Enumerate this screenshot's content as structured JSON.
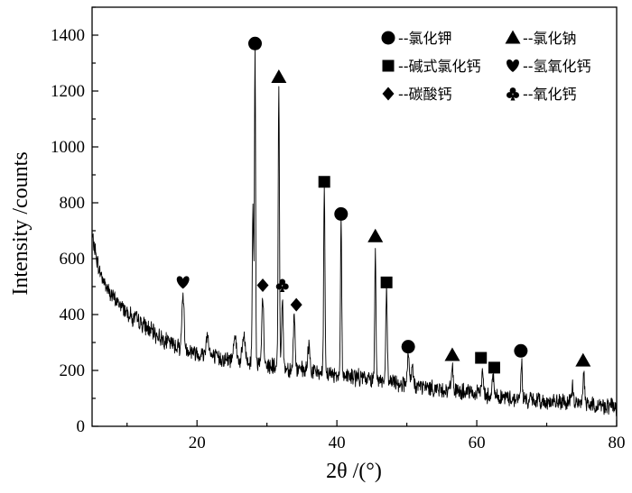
{
  "chart_data": {
    "type": "line",
    "xlabel": "2θ /(°)",
    "ylabel": "Intensity /counts",
    "xlim": [
      5,
      80
    ],
    "ylim": [
      0,
      1500
    ],
    "x_ticks": [
      20,
      40,
      60,
      80
    ],
    "y_ticks": [
      0,
      200,
      400,
      600,
      800,
      1000,
      1200,
      1400
    ],
    "grid": false,
    "legend_placement": "top-right",
    "line_color": "#000000",
    "legend": [
      {
        "marker": "circle",
        "label": "--氯化钾"
      },
      {
        "marker": "triangle",
        "label": "--氯化钠"
      },
      {
        "marker": "square",
        "label": "--碱式氯化钙"
      },
      {
        "marker": "heart",
        "label": "--氢氧化钙"
      },
      {
        "marker": "diamond",
        "label": "--碳酸钙"
      },
      {
        "marker": "club",
        "label": "--氧化钙"
      }
    ],
    "background": [
      [
        5,
        680
      ],
      [
        6,
        560
      ],
      [
        7,
        500
      ],
      [
        8,
        460
      ],
      [
        10,
        410
      ],
      [
        12,
        370
      ],
      [
        14,
        330
      ],
      [
        16,
        300
      ],
      [
        18,
        280
      ],
      [
        20,
        262
      ],
      [
        22,
        250
      ],
      [
        24,
        240
      ],
      [
        26,
        232
      ],
      [
        28,
        226
      ],
      [
        30,
        218
      ],
      [
        32,
        210
      ],
      [
        35,
        200
      ],
      [
        38,
        192
      ],
      [
        40,
        185
      ],
      [
        43,
        175
      ],
      [
        46,
        165
      ],
      [
        50,
        150
      ],
      [
        55,
        132
      ],
      [
        60,
        115
      ],
      [
        65,
        100
      ],
      [
        70,
        88
      ],
      [
        75,
        80
      ],
      [
        80,
        70
      ]
    ],
    "peaks": [
      {
        "x": 10.8,
        "y": 380,
        "w": 0.12
      },
      {
        "x": 18.0,
        "y": 475,
        "w": 0.15
      },
      {
        "x": 21.5,
        "y": 330,
        "w": 0.2
      },
      {
        "x": 25.4,
        "y": 330,
        "w": 0.2
      },
      {
        "x": 26.7,
        "y": 320,
        "w": 0.2
      },
      {
        "x": 28.0,
        "y": 790,
        "w": 0.1
      },
      {
        "x": 28.3,
        "y": 1370,
        "w": 0.08
      },
      {
        "x": 29.4,
        "y": 470,
        "w": 0.12
      },
      {
        "x": 31.7,
        "y": 1230,
        "w": 0.09
      },
      {
        "x": 32.2,
        "y": 450,
        "w": 0.12
      },
      {
        "x": 33.9,
        "y": 400,
        "w": 0.12
      },
      {
        "x": 36.0,
        "y": 290,
        "w": 0.15
      },
      {
        "x": 38.2,
        "y": 840,
        "w": 0.09
      },
      {
        "x": 40.6,
        "y": 730,
        "w": 0.09
      },
      {
        "x": 45.5,
        "y": 650,
        "w": 0.09
      },
      {
        "x": 47.1,
        "y": 490,
        "w": 0.1
      },
      {
        "x": 50.2,
        "y": 255,
        "w": 0.12
      },
      {
        "x": 50.8,
        "y": 215,
        "w": 0.12
      },
      {
        "x": 56.5,
        "y": 225,
        "w": 0.12
      },
      {
        "x": 60.8,
        "y": 190,
        "w": 0.15
      },
      {
        "x": 62.3,
        "y": 180,
        "w": 0.15
      },
      {
        "x": 66.4,
        "y": 235,
        "w": 0.1
      },
      {
        "x": 73.7,
        "y": 140,
        "w": 0.15
      },
      {
        "x": 75.3,
        "y": 200,
        "w": 0.12
      }
    ],
    "annotations": [
      {
        "marker": "circle",
        "x": 28.3,
        "y": 1370
      },
      {
        "marker": "triangle",
        "x": 31.7,
        "y": 1250
      },
      {
        "marker": "square",
        "x": 38.2,
        "y": 875
      },
      {
        "marker": "circle",
        "x": 40.6,
        "y": 760
      },
      {
        "marker": "triangle",
        "x": 45.5,
        "y": 680
      },
      {
        "marker": "square",
        "x": 47.1,
        "y": 515
      },
      {
        "marker": "heart",
        "x": 18.0,
        "y": 515
      },
      {
        "marker": "diamond",
        "x": 29.4,
        "y": 505
      },
      {
        "marker": "club",
        "x": 32.2,
        "y": 505
      },
      {
        "marker": "diamond",
        "x": 34.2,
        "y": 435
      },
      {
        "marker": "circle",
        "x": 50.2,
        "y": 285
      },
      {
        "marker": "triangle",
        "x": 56.5,
        "y": 255
      },
      {
        "marker": "square",
        "x": 60.6,
        "y": 245
      },
      {
        "marker": "square",
        "x": 62.5,
        "y": 210
      },
      {
        "marker": "circle",
        "x": 66.3,
        "y": 270
      },
      {
        "marker": "triangle",
        "x": 75.2,
        "y": 235
      }
    ]
  }
}
